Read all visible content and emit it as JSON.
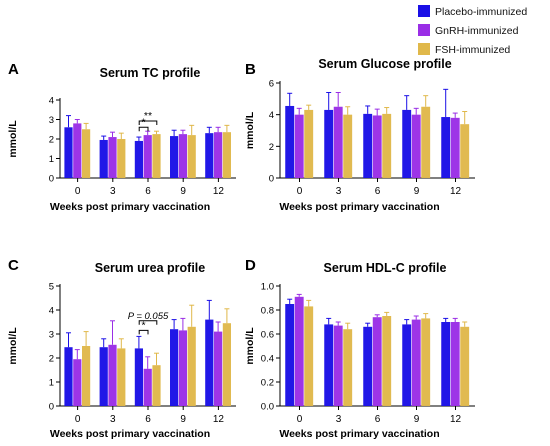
{
  "legend": {
    "placement": "top-right",
    "items": [
      {
        "label": "Placebo-immunized",
        "color": "#1a0fe6"
      },
      {
        "label": "GnRH-immunized",
        "color": "#9a2ee6"
      },
      {
        "label": "FSH-immunized",
        "color": "#e0b84a"
      }
    ]
  },
  "chart_data": [
    {
      "panel": "A",
      "type": "bar",
      "title": "Serum TC profile",
      "xlabel": "Weeks post primary vaccination",
      "ylabel": "mmol/L",
      "ylim": [
        0,
        4
      ],
      "yticks": [
        0,
        1,
        2,
        3,
        4
      ],
      "categories": [
        "0",
        "3",
        "6",
        "9",
        "12"
      ],
      "series": [
        {
          "name": "Placebo-immunized",
          "values": [
            2.6,
            1.95,
            1.9,
            2.15,
            2.3
          ],
          "errors": [
            0.6,
            0.2,
            0.2,
            0.3,
            0.3
          ]
        },
        {
          "name": "GnRH-immunized",
          "values": [
            2.8,
            2.1,
            2.2,
            2.25,
            2.35
          ],
          "errors": [
            0.2,
            0.25,
            0.2,
            0.2,
            0.25
          ]
        },
        {
          "name": "FSH-immunized",
          "values": [
            2.5,
            2.0,
            2.25,
            2.2,
            2.35
          ],
          "errors": [
            0.3,
            0.3,
            0.15,
            0.5,
            0.35
          ]
        }
      ],
      "annotations": [
        {
          "text": "*",
          "category": "6",
          "from": 0,
          "to": 1
        },
        {
          "text": "**",
          "category": "6",
          "from": 0,
          "to": 2
        }
      ]
    },
    {
      "panel": "B",
      "type": "bar",
      "title": "Serum Glucose profile",
      "xlabel": "Weeks post primary vaccination",
      "ylabel": "mmol/L",
      "ylim": [
        0,
        6
      ],
      "yticks": [
        0,
        2,
        4,
        6
      ],
      "categories": [
        "0",
        "3",
        "6",
        "9",
        "12"
      ],
      "series": [
        {
          "name": "Placebo-immunized",
          "values": [
            4.55,
            4.3,
            4.05,
            4.3,
            3.85
          ],
          "errors": [
            0.8,
            1.1,
            0.5,
            0.9,
            1.75
          ]
        },
        {
          "name": "GnRH-immunized",
          "values": [
            4.0,
            4.5,
            3.95,
            4.0,
            3.8
          ],
          "errors": [
            0.4,
            0.9,
            0.4,
            0.4,
            0.3
          ]
        },
        {
          "name": "FSH-immunized",
          "values": [
            4.3,
            4.0,
            4.05,
            4.5,
            3.4
          ],
          "errors": [
            0.3,
            0.5,
            0.4,
            0.7,
            0.8
          ]
        }
      ],
      "annotations": []
    },
    {
      "panel": "C",
      "type": "bar",
      "title": "Serum urea profile",
      "xlabel": "Weeks post primary vaccination",
      "ylabel": "mmol/L",
      "ylim": [
        0,
        5
      ],
      "yticks": [
        0,
        1,
        2,
        3,
        4,
        5
      ],
      "categories": [
        "0",
        "3",
        "6",
        "9",
        "12"
      ],
      "series": [
        {
          "name": "Placebo-immunized",
          "values": [
            2.45,
            2.45,
            2.4,
            3.2,
            3.6
          ],
          "errors": [
            0.6,
            0.35,
            0.5,
            0.4,
            0.8
          ]
        },
        {
          "name": "GnRH-immunized",
          "values": [
            1.95,
            2.55,
            1.55,
            3.15,
            3.1
          ],
          "errors": [
            0.4,
            1.0,
            0.5,
            0.5,
            0.4
          ]
        },
        {
          "name": "FSH-immunized",
          "values": [
            2.5,
            2.4,
            1.7,
            3.3,
            3.45
          ],
          "errors": [
            0.6,
            0.4,
            0.5,
            0.9,
            0.6
          ]
        }
      ],
      "annotations": [
        {
          "text": "*",
          "category": "6",
          "from": 0,
          "to": 1
        },
        {
          "text": "P = 0.055",
          "category": "6",
          "from": 0,
          "to": 2
        }
      ]
    },
    {
      "panel": "D",
      "type": "bar",
      "title": "Serum HDL-C profile",
      "xlabel": "Weeks post primary vaccination",
      "ylabel": "mmol/L",
      "ylim": [
        0,
        1.0
      ],
      "yticks": [
        0.0,
        0.2,
        0.4,
        0.6,
        0.8,
        1.0
      ],
      "categories": [
        "0",
        "3",
        "6",
        "9",
        "12"
      ],
      "series": [
        {
          "name": "Placebo-immunized",
          "values": [
            0.85,
            0.68,
            0.66,
            0.68,
            0.7
          ],
          "errors": [
            0.04,
            0.05,
            0.03,
            0.04,
            0.03
          ]
        },
        {
          "name": "GnRH-immunized",
          "values": [
            0.91,
            0.67,
            0.74,
            0.72,
            0.7
          ],
          "errors": [
            0.02,
            0.03,
            0.02,
            0.03,
            0.03
          ]
        },
        {
          "name": "FSH-immunized",
          "values": [
            0.83,
            0.64,
            0.75,
            0.73,
            0.66
          ],
          "errors": [
            0.05,
            0.05,
            0.03,
            0.04,
            0.04
          ]
        }
      ],
      "annotations": []
    }
  ]
}
